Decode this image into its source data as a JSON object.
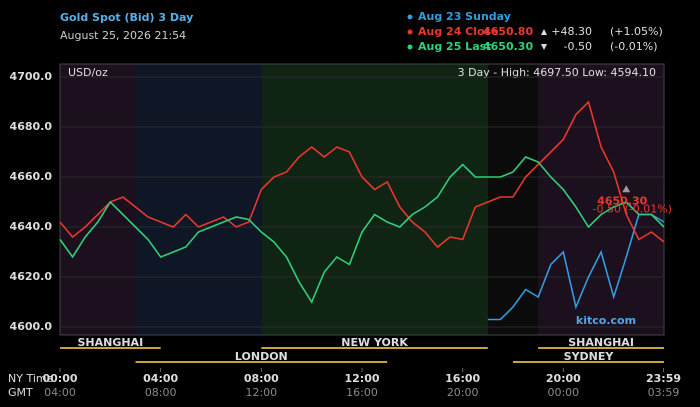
{
  "chart_data": {
    "type": "line",
    "title": "Gold Spot (Bid) 3 Day",
    "subtitle": "August 25, 2026 21:54",
    "unit_label": "USD/oz",
    "range_text": "3 Day - High: 4697.50  Low: 4594.10",
    "watermark": "kitco.com",
    "x_row_label": "NY Time",
    "x2_row_label": "GMT",
    "x": [
      0,
      0.5,
      1,
      1.5,
      2,
      2.5,
      3,
      3.5,
      4,
      4.5,
      5,
      5.5,
      6,
      6.5,
      7,
      7.5,
      8,
      8.5,
      9,
      9.5,
      10,
      10.5,
      11,
      11.5,
      12,
      12.5,
      13,
      13.5,
      14,
      14.5,
      15,
      15.5,
      16,
      16.5,
      17,
      17.5,
      18,
      18.5,
      19,
      19.5,
      20,
      20.5,
      21,
      21.5,
      22,
      22.5,
      23,
      23.5,
      24
    ],
    "xlim": [
      0,
      24
    ],
    "xticks": [
      {
        "value": 0,
        "label": "00:00"
      },
      {
        "value": 4,
        "label": "04:00"
      },
      {
        "value": 8,
        "label": "08:00"
      },
      {
        "value": 12,
        "label": "12:00"
      },
      {
        "value": 16,
        "label": "16:00"
      },
      {
        "value": 20,
        "label": "20:00"
      },
      {
        "value": 23.98,
        "label": "23:59"
      }
    ],
    "x2ticks": [
      {
        "value": 0,
        "label": "04:00"
      },
      {
        "value": 4,
        "label": "08:00"
      },
      {
        "value": 8,
        "label": "12:00"
      },
      {
        "value": 12,
        "label": "16:00"
      },
      {
        "value": 16,
        "label": "20:00"
      },
      {
        "value": 20,
        "label": "00:00"
      },
      {
        "value": 23.98,
        "label": "03:59"
      }
    ],
    "ylim": [
      4597,
      4705
    ],
    "yticks": [
      {
        "value": 4600,
        "label": "4600.0"
      },
      {
        "value": 4620,
        "label": "4620.0"
      },
      {
        "value": 4640,
        "label": "4640.0"
      },
      {
        "value": 4660,
        "label": "4660.0"
      },
      {
        "value": 4680,
        "label": "4680.0"
      },
      {
        "value": 4700,
        "label": "4700.0"
      }
    ],
    "series": [
      {
        "name": "Aug 23 Sunday",
        "color": "#2f9de0",
        "values": [
          null,
          null,
          null,
          null,
          null,
          null,
          null,
          null,
          null,
          null,
          null,
          null,
          null,
          null,
          null,
          null,
          null,
          null,
          null,
          null,
          null,
          null,
          null,
          null,
          null,
          null,
          null,
          null,
          null,
          null,
          null,
          null,
          null,
          null,
          4603,
          4603,
          4608,
          4615,
          4612,
          4625,
          4630,
          4608,
          4620,
          4630,
          4612,
          4628,
          4645,
          4645,
          4642
        ]
      },
      {
        "name": "Aug 24 Close",
        "color": "#e8372c",
        "price": "4650.80",
        "change": "+48.30",
        "change_pct": "(+1.05%)",
        "values": [
          4642,
          4636,
          4640,
          4645,
          4650,
          4652,
          4648,
          4644,
          4642,
          4640,
          4645,
          4640,
          4642,
          4644,
          4640,
          4642,
          4655,
          4660,
          4662,
          4668,
          4672,
          4668,
          4672,
          4670,
          4660,
          4655,
          4658,
          4648,
          4642,
          4638,
          4632,
          4636,
          4635,
          4648,
          4650,
          4652,
          4652,
          4660,
          4665,
          4670,
          4675,
          4685,
          4690,
          4672,
          4662,
          4645,
          4635,
          4638,
          4634
        ]
      },
      {
        "name": "Aug 25 Last",
        "color": "#2fd07a",
        "price": "4650.30",
        "change": "-0.50",
        "change_pct": "(-0.01%)",
        "values": [
          4635,
          4628,
          4636,
          4642,
          4650,
          4645,
          4640,
          4635,
          4628,
          4630,
          4632,
          4638,
          4640,
          4642,
          4644,
          4643,
          4638,
          4634,
          4628,
          4618,
          4610,
          4622,
          4628,
          4625,
          4638,
          4645,
          4642,
          4640,
          4645,
          4648,
          4652,
          4660,
          4665,
          4660,
          4660,
          4660,
          4662,
          4668,
          4666,
          4660,
          4655,
          4648,
          4640,
          4645,
          4648,
          4650,
          4645,
          4645,
          4640
        ]
      }
    ],
    "annotation": {
      "x": 22.5,
      "y": 4650.3,
      "text": "4650.30",
      "subtext": "-0.50 (-0.01%)"
    },
    "sessions": [
      {
        "name": "SHANGHAI",
        "start": 0,
        "end": 4,
        "row": 1
      },
      {
        "name": "LONDON",
        "start": 3,
        "end": 13,
        "row": 2
      },
      {
        "name": "NEW YORK",
        "start": 8,
        "end": 17,
        "row": 1
      },
      {
        "name": "SYDNEY",
        "start": 18,
        "end": 24,
        "row": 2
      },
      {
        "name": "SHANGHAI",
        "start": 19,
        "end": 24,
        "row": 1
      }
    ]
  }
}
